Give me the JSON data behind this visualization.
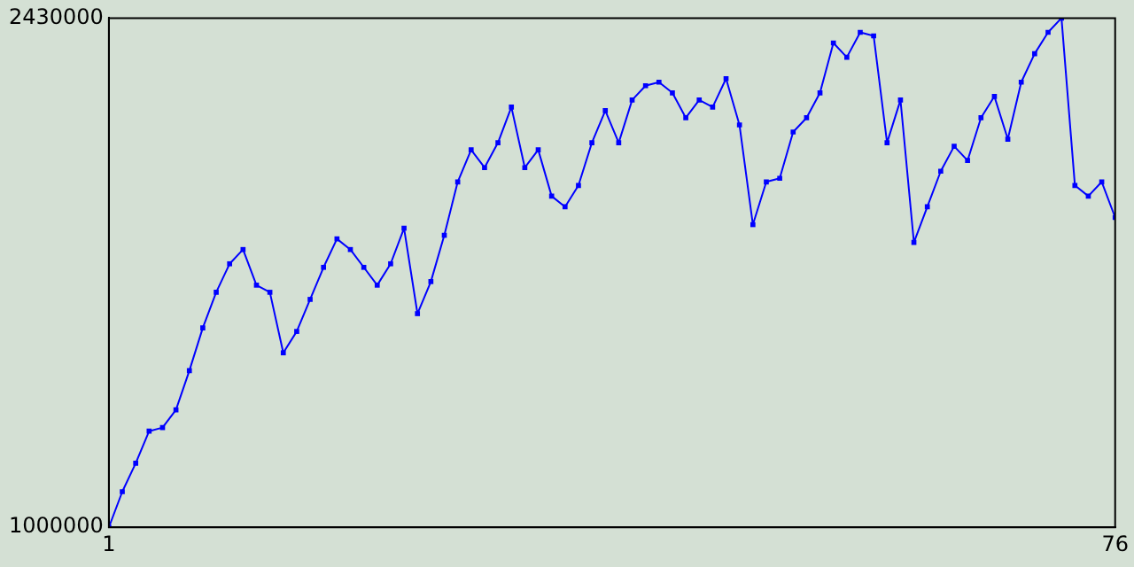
{
  "chart_data": {
    "type": "line",
    "x": [
      1,
      2,
      3,
      4,
      5,
      6,
      7,
      8,
      9,
      10,
      11,
      12,
      13,
      14,
      15,
      16,
      17,
      18,
      19,
      20,
      21,
      22,
      23,
      24,
      25,
      26,
      27,
      28,
      29,
      30,
      31,
      32,
      33,
      34,
      35,
      36,
      37,
      38,
      39,
      40,
      41,
      42,
      43,
      44,
      45,
      46,
      47,
      48,
      49,
      50,
      51,
      52,
      53,
      54,
      55,
      56,
      57,
      58,
      59,
      60,
      61,
      62,
      63,
      64,
      65,
      66,
      67,
      68,
      69,
      70,
      71,
      72,
      73,
      74,
      75,
      76
    ],
    "series": [
      {
        "color": "#0000ff",
        "values": [
          1000000,
          1100000,
          1180000,
          1270000,
          1280000,
          1330000,
          1440000,
          1560000,
          1660000,
          1740000,
          1780000,
          1680000,
          1660000,
          1490000,
          1550000,
          1640000,
          1730000,
          1810000,
          1780000,
          1730000,
          1680000,
          1740000,
          1840000,
          1600000,
          1690000,
          1820000,
          1970000,
          2060000,
          2010000,
          2080000,
          2180000,
          2010000,
          2060000,
          1930000,
          1900000,
          1960000,
          2080000,
          2170000,
          2080000,
          2200000,
          2240000,
          2250000,
          2220000,
          2150000,
          2200000,
          2180000,
          2260000,
          2130000,
          1850000,
          1970000,
          1980000,
          2110000,
          2150000,
          2220000,
          2360000,
          2320000,
          2390000,
          2380000,
          2080000,
          2200000,
          1800000,
          1900000,
          2000000,
          2070000,
          2030000,
          2150000,
          2210000,
          2090000,
          2250000,
          2330000,
          2390000,
          2430000,
          1960000,
          1930000,
          1970000,
          1870000
        ]
      }
    ],
    "xlim": [
      1,
      76
    ],
    "xticks": [
      1,
      76
    ],
    "ylim": [
      1000000,
      2430000
    ],
    "yticks": [
      1000000,
      2430000
    ],
    "grid": false,
    "legend": false,
    "marker": "square",
    "line_style": "solid"
  }
}
